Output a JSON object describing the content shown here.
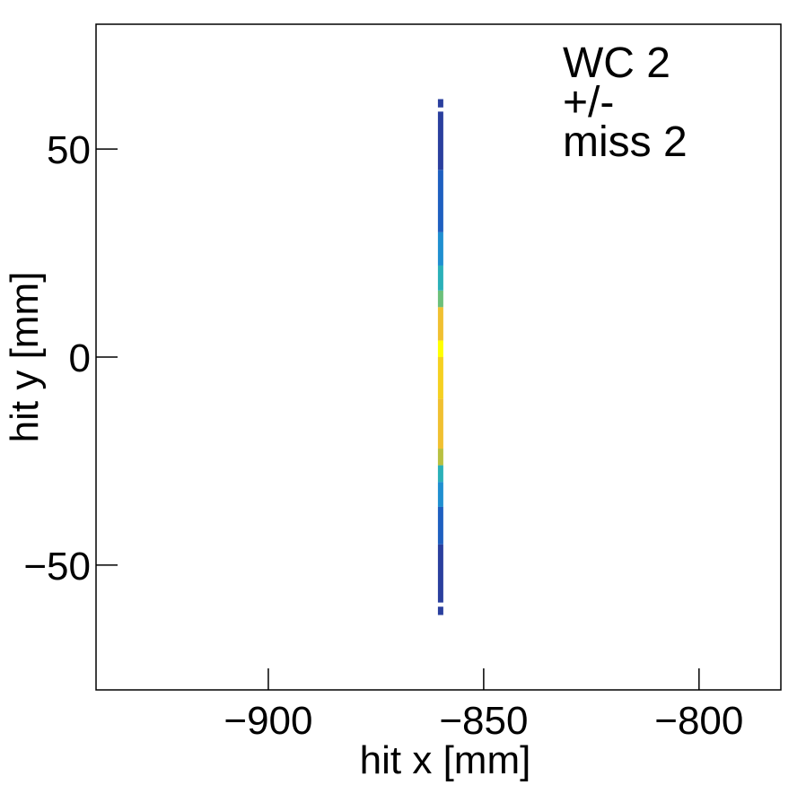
{
  "chart_data": {
    "type": "heatmap",
    "title": "",
    "xlabel": "hit x [mm]",
    "ylabel": "hit y [mm]",
    "xlim": [
      -940,
      -781
    ],
    "ylim": [
      -80,
      80
    ],
    "x_ticks": [
      -900,
      -850,
      -800
    ],
    "y_ticks": [
      -50,
      0,
      50
    ],
    "x_tick_labels": [
      "−900",
      "−850",
      "−800"
    ],
    "y_tick_labels": [
      "−50",
      "0",
      "50"
    ],
    "grid": false,
    "annotation_lines": [
      "WC 2",
      "+/-",
      "miss 2"
    ],
    "colormap": [
      "#2a3f9e",
      "#1e5fc0",
      "#1f8fd0",
      "#2ab0b8",
      "#6cc07a",
      "#b8c040",
      "#f0c030",
      "#f5d020",
      "#ffff00"
    ],
    "series": [
      {
        "x": -860,
        "bins": [
          {
            "y0": -62,
            "y1": -60,
            "level": 0.0
          },
          {
            "y0": -59,
            "y1": -45,
            "level": 0.05
          },
          {
            "y0": -45,
            "y1": -36,
            "level": 0.12
          },
          {
            "y0": -36,
            "y1": -30,
            "level": 0.25
          },
          {
            "y0": -30,
            "y1": -26,
            "level": 0.4
          },
          {
            "y0": -26,
            "y1": -22,
            "level": 0.62
          },
          {
            "y0": -22,
            "y1": -10,
            "level": 0.78
          },
          {
            "y0": -10,
            "y1": 0,
            "level": 0.85
          },
          {
            "y0": 0,
            "y1": 4,
            "level": 1.0
          },
          {
            "y0": 4,
            "y1": 12,
            "level": 0.8
          },
          {
            "y0": 12,
            "y1": 16,
            "level": 0.55
          },
          {
            "y0": 16,
            "y1": 22,
            "level": 0.35
          },
          {
            "y0": 22,
            "y1": 30,
            "level": 0.2
          },
          {
            "y0": 30,
            "y1": 45,
            "level": 0.08
          },
          {
            "y0": 45,
            "y1": 59,
            "level": 0.03
          },
          {
            "y0": 60,
            "y1": 62,
            "level": 0.0
          }
        ]
      }
    ]
  }
}
